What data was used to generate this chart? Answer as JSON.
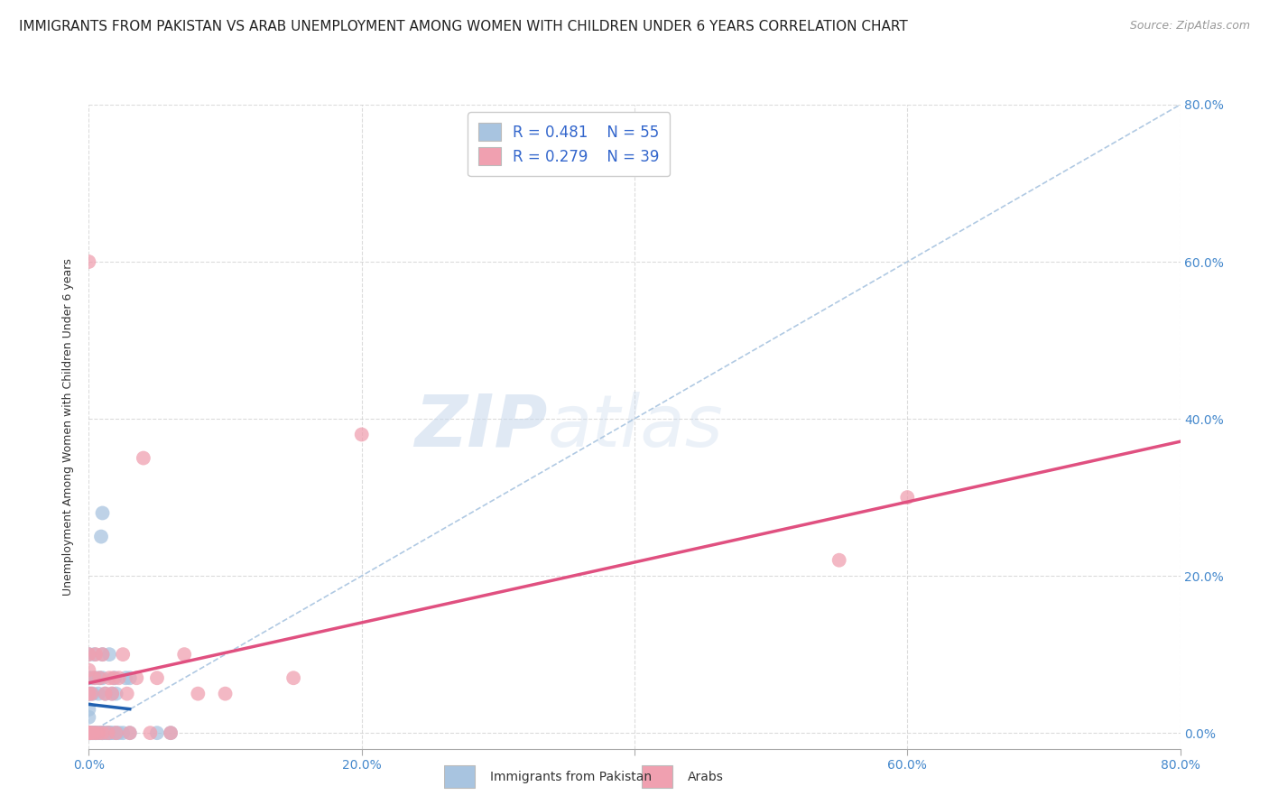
{
  "title": "IMMIGRANTS FROM PAKISTAN VS ARAB UNEMPLOYMENT AMONG WOMEN WITH CHILDREN UNDER 6 YEARS CORRELATION CHART",
  "source": "Source: ZipAtlas.com",
  "xlabel_ticks": [
    "0.0%",
    "",
    "20.0%",
    "",
    "40.0%",
    "",
    "60.0%",
    "",
    "80.0%"
  ],
  "ylabel_label": "Unemployment Among Women with Children Under 6 years",
  "ylabel_ticks_right": [
    "0.0%",
    "20.0%",
    "40.0%",
    "60.0%",
    "80.0%"
  ],
  "x_tick_vals": [
    0.0,
    0.1,
    0.2,
    0.3,
    0.4,
    0.5,
    0.6,
    0.7,
    0.8
  ],
  "y_tick_vals": [
    0.0,
    0.2,
    0.4,
    0.6,
    0.8
  ],
  "legend_labels": [
    "Immigrants from Pakistan",
    "Arabs"
  ],
  "pakistan_R": "0.481",
  "pakistan_N": "55",
  "arab_R": "0.279",
  "arab_N": "39",
  "pakistan_color": "#a8c4e0",
  "arab_color": "#f0a0b0",
  "pakistan_line_color": "#2060b0",
  "arab_line_color": "#e05080",
  "dash_line_color": "#a8c4e0",
  "background_color": "#ffffff",
  "grid_color": "#cccccc",
  "watermark_zip": "ZIP",
  "watermark_atlas": "atlas",
  "title_fontsize": 11,
  "source_fontsize": 9,
  "axis_label_fontsize": 9,
  "tick_fontsize": 10,
  "legend_fontsize": 12,
  "pakistan_scatter_x": [
    0.0,
    0.0,
    0.0,
    0.0,
    0.0,
    0.0,
    0.0,
    0.0,
    0.0,
    0.0,
    0.0,
    0.0,
    0.001,
    0.001,
    0.001,
    0.002,
    0.002,
    0.002,
    0.003,
    0.003,
    0.004,
    0.004,
    0.005,
    0.005,
    0.005,
    0.006,
    0.007,
    0.008,
    0.008,
    0.009,
    0.009,
    0.01,
    0.01,
    0.01,
    0.01,
    0.01,
    0.012,
    0.012,
    0.013,
    0.015,
    0.015,
    0.015,
    0.016,
    0.017,
    0.018,
    0.019,
    0.02,
    0.02,
    0.022,
    0.025,
    0.027,
    0.03,
    0.03,
    0.05,
    0.06
  ],
  "pakistan_scatter_y": [
    0.0,
    0.0,
    0.0,
    0.0,
    0.0,
    0.0,
    0.0,
    0.02,
    0.03,
    0.05,
    0.07,
    0.1,
    0.0,
    0.0,
    0.05,
    0.0,
    0.0,
    0.07,
    0.0,
    0.05,
    0.0,
    0.1,
    0.0,
    0.0,
    0.07,
    0.0,
    0.05,
    0.0,
    0.07,
    0.0,
    0.25,
    0.0,
    0.0,
    0.07,
    0.1,
    0.28,
    0.0,
    0.05,
    0.0,
    0.0,
    0.0,
    0.1,
    0.0,
    0.05,
    0.0,
    0.07,
    0.0,
    0.05,
    0.0,
    0.0,
    0.07,
    0.0,
    0.07,
    0.0,
    0.0
  ],
  "arab_scatter_x": [
    0.0,
    0.0,
    0.0,
    0.0,
    0.0,
    0.0,
    0.0,
    0.001,
    0.002,
    0.003,
    0.004,
    0.005,
    0.005,
    0.007,
    0.008,
    0.01,
    0.01,
    0.012,
    0.014,
    0.015,
    0.017,
    0.018,
    0.02,
    0.022,
    0.025,
    0.028,
    0.03,
    0.035,
    0.04,
    0.045,
    0.05,
    0.06,
    0.07,
    0.08,
    0.1,
    0.15,
    0.2,
    0.55,
    0.6
  ],
  "arab_scatter_y": [
    0.0,
    0.0,
    0.0,
    0.05,
    0.08,
    0.1,
    0.6,
    0.0,
    0.05,
    0.0,
    0.07,
    0.0,
    0.1,
    0.0,
    0.07,
    0.0,
    0.1,
    0.05,
    0.0,
    0.07,
    0.05,
    0.07,
    0.0,
    0.07,
    0.1,
    0.05,
    0.0,
    0.07,
    0.35,
    0.0,
    0.07,
    0.0,
    0.1,
    0.05,
    0.05,
    0.07,
    0.38,
    0.22,
    0.3
  ]
}
